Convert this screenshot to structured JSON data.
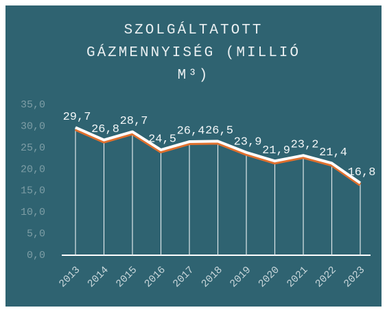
{
  "chart_data": {
    "type": "line",
    "title": "SZOLGÁLTATOTT GÁZMENNYISÉG (MILLIÓ M³)",
    "categories": [
      "2013",
      "2014",
      "2015",
      "2016",
      "2017",
      "2018",
      "2019",
      "2020",
      "2021",
      "2022",
      "2023"
    ],
    "series": [
      {
        "color": "#ffffff",
        "values": [
          29.7,
          26.8,
          28.7,
          24.5,
          26.4,
          26.5,
          23.9,
          21.9,
          23.2,
          21.4,
          16.8
        ],
        "value_labels": [
          "29,7",
          "26,8",
          "28,7",
          "24,5",
          "26,4",
          "26,5",
          "23,9",
          "21,9",
          "23,2",
          "21,4",
          "16,8"
        ]
      }
    ],
    "ylim": [
      0,
      35
    ],
    "yticks": [
      {
        "value": 0,
        "label": "0,0"
      },
      {
        "value": 5,
        "label": "5,0"
      },
      {
        "value": 10,
        "label": "10,0"
      },
      {
        "value": 15,
        "label": "15,0"
      },
      {
        "value": 20,
        "label": "20,0"
      },
      {
        "value": 25,
        "label": "25,0"
      },
      {
        "value": 30,
        "label": "30,0"
      },
      {
        "value": 35,
        "label": "35,0"
      }
    ],
    "grid": false
  }
}
